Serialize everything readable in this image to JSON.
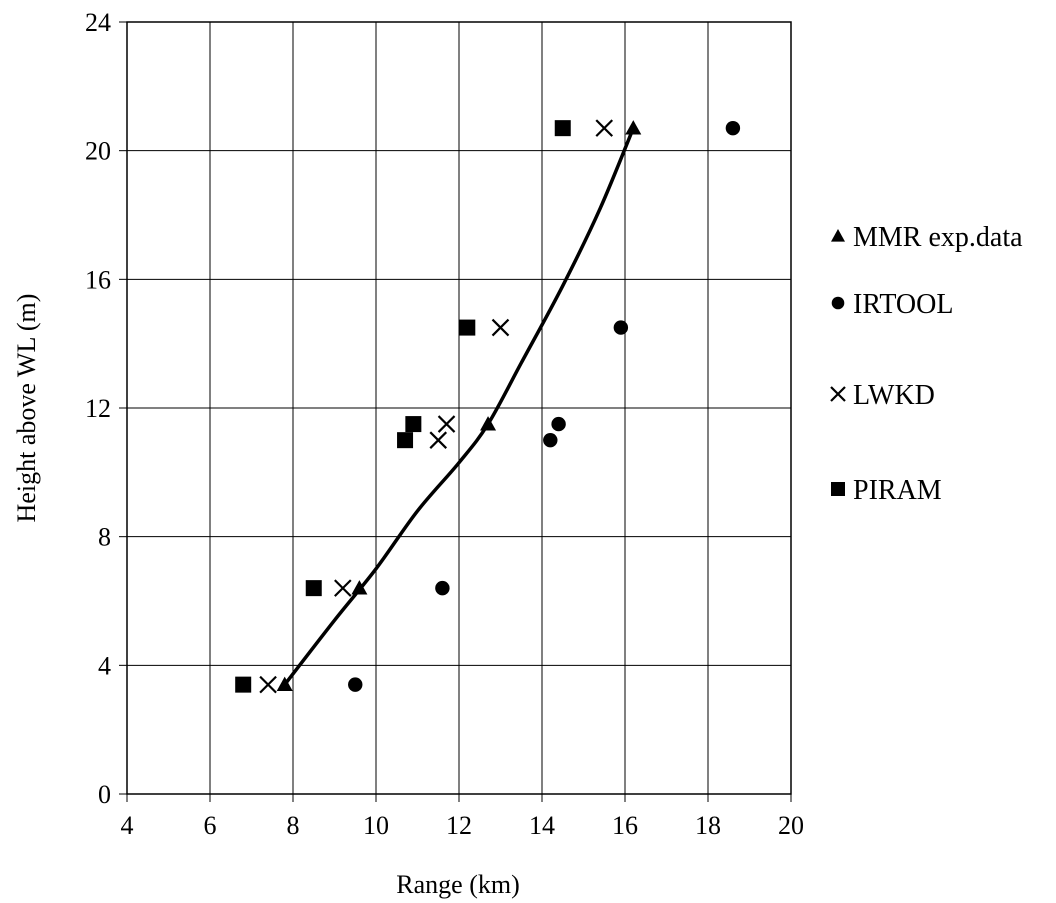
{
  "chart_data": {
    "type": "scatter",
    "title": "",
    "xlabel": "Range (km)",
    "ylabel": "Height above WL (m)",
    "xlim": [
      4,
      20
    ],
    "ylim": [
      0,
      24
    ],
    "xticks": [
      4,
      6,
      8,
      10,
      12,
      14,
      16,
      18,
      20
    ],
    "yticks": [
      0,
      4,
      8,
      12,
      16,
      20,
      24
    ],
    "grid": true,
    "legend_position": "right",
    "series": [
      {
        "name": "MMR exp.data",
        "marker": "triangle",
        "color": "#000000",
        "points": [
          [
            7.8,
            3.4
          ],
          [
            9.6,
            6.4
          ],
          [
            12.7,
            11.5
          ],
          [
            16.2,
            20.7
          ]
        ]
      },
      {
        "name": "IRTOOL",
        "marker": "circle",
        "color": "#000000",
        "points": [
          [
            9.5,
            3.4
          ],
          [
            11.6,
            6.4
          ],
          [
            14.2,
            11.0
          ],
          [
            14.4,
            11.5
          ],
          [
            15.9,
            14.5
          ],
          [
            18.6,
            20.7
          ]
        ]
      },
      {
        "name": "LWKD",
        "marker": "cross",
        "color": "#000000",
        "points": [
          [
            7.4,
            3.4
          ],
          [
            9.2,
            6.4
          ],
          [
            11.5,
            11.0
          ],
          [
            11.7,
            11.5
          ],
          [
            13.0,
            14.5
          ],
          [
            15.5,
            20.7
          ]
        ]
      },
      {
        "name": "PIRAM",
        "marker": "square",
        "color": "#000000",
        "points": [
          [
            6.8,
            3.4
          ],
          [
            8.5,
            6.4
          ],
          [
            10.7,
            11.0
          ],
          [
            10.9,
            11.5
          ],
          [
            12.2,
            14.5
          ],
          [
            14.5,
            20.7
          ]
        ]
      }
    ],
    "trendline": {
      "series": "MMR exp.data",
      "points": [
        [
          7.8,
          3.4
        ],
        [
          9.0,
          5.4
        ],
        [
          10.0,
          7.0
        ],
        [
          11.0,
          8.8
        ],
        [
          12.0,
          10.3
        ],
        [
          12.7,
          11.5
        ],
        [
          13.5,
          13.4
        ],
        [
          14.5,
          15.8
        ],
        [
          15.4,
          18.2
        ],
        [
          16.2,
          20.7
        ]
      ]
    }
  }
}
